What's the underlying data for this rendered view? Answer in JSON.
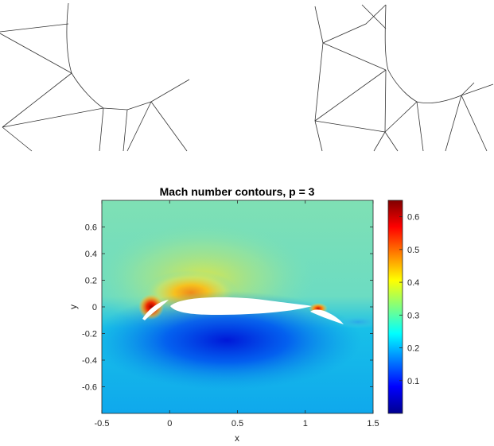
{
  "chart_data": {
    "type": "heatmap",
    "title": "Mach number contours, p = 3",
    "xlabel": "x",
    "ylabel": "y",
    "xlim": [
      -0.5,
      1.5
    ],
    "ylim": [
      -0.8,
      0.8
    ],
    "xticks": [
      -0.5,
      0,
      0.5,
      1,
      1.5
    ],
    "xtick_labels": [
      "-0.5",
      "0",
      "0.5",
      "1",
      "1.5"
    ],
    "yticks": [
      0.6,
      0.4,
      0.2,
      0,
      -0.2,
      -0.4,
      -0.6
    ],
    "ytick_labels": [
      "0.6",
      "0.4",
      "0.2",
      "0",
      "-0.2",
      "-0.4",
      "-0.6"
    ],
    "colorbar": {
      "range": [
        0.0,
        0.65
      ],
      "ticks": [
        0.6,
        0.5,
        0.4,
        0.3,
        0.2,
        0.1
      ],
      "tick_labels": [
        "0.6",
        "0.5",
        "0.4",
        "0.3",
        "0.2",
        "0.1"
      ],
      "colormap": "jet"
    },
    "features": {
      "freestream_mach": 0.3,
      "upper_surface_peak_mach": 0.48,
      "lower_surface_mach": 0.1,
      "slat_leading_edge_peak_mach": 0.6,
      "flap_leading_edge_peak_mach": 0.55
    },
    "grid": false
  }
}
